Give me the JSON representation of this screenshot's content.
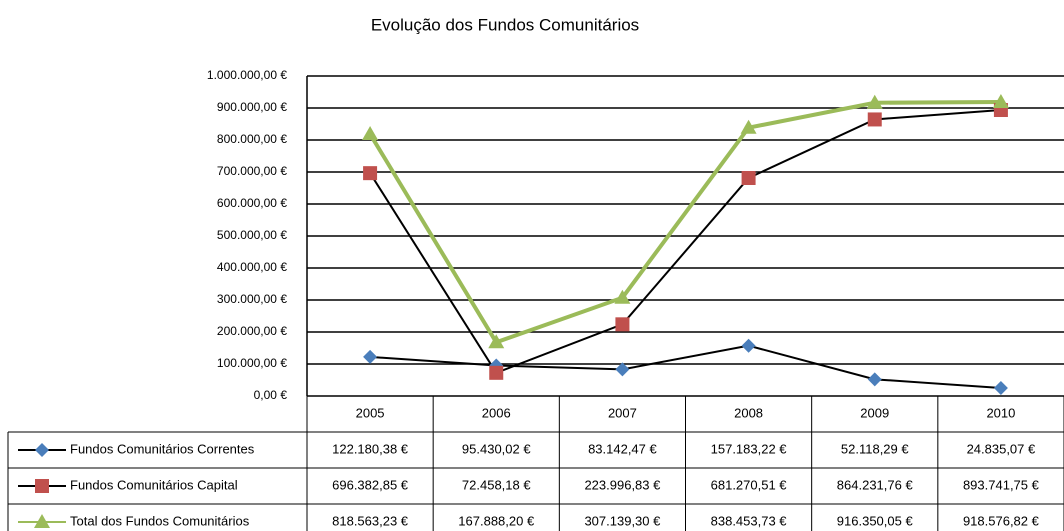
{
  "chart_data": {
    "type": "line",
    "title": "Evolução dos Fundos Comunitários",
    "categories": [
      "2005",
      "2006",
      "2007",
      "2008",
      "2009",
      "2010"
    ],
    "series": [
      {
        "name": "Fundos Comunitários Correntes",
        "color": "#4a7ebb",
        "line_color": "#000000",
        "marker": "diamond",
        "values": [
          122180.38,
          95430.02,
          83142.47,
          157183.22,
          52118.29,
          24835.07
        ],
        "value_labels": [
          "122.180,38 €",
          "95.430,02 €",
          "83.142,47 €",
          "157.183,22 €",
          "52.118,29 €",
          "24.835,07 €"
        ]
      },
      {
        "name": "Fundos Comunitários Capital",
        "color": "#c0504d",
        "line_color": "#000000",
        "marker": "square",
        "values": [
          696382.85,
          72458.18,
          223996.83,
          681270.51,
          864231.76,
          893741.75
        ],
        "value_labels": [
          "696.382,85 €",
          "72.458,18 €",
          "223.996,83 €",
          "681.270,51 €",
          "864.231,76 €",
          "893.741,75 €"
        ]
      },
      {
        "name": "Total dos Fundos Comunitários",
        "color": "#9bbb59",
        "line_color": "#9bbb59",
        "marker": "triangle",
        "values": [
          818563.23,
          167888.2,
          307139.3,
          838453.73,
          916350.05,
          918576.82
        ],
        "value_labels": [
          "818.563,23 €",
          "167.888,20 €",
          "307.139,30 €",
          "838.453,73 €",
          "916.350,05 €",
          "918.576,82 €"
        ]
      }
    ],
    "ylim": [
      0,
      1000000
    ],
    "yticks": [
      {
        "value": 0,
        "label": "0,00 €"
      },
      {
        "value": 100000,
        "label": "100.000,00 €"
      },
      {
        "value": 200000,
        "label": "200.000,00 €"
      },
      {
        "value": 300000,
        "label": "300.000,00 €"
      },
      {
        "value": 400000,
        "label": "400.000,00 €"
      },
      {
        "value": 500000,
        "label": "500.000,00 €"
      },
      {
        "value": 600000,
        "label": "600.000,00 €"
      },
      {
        "value": 700000,
        "label": "700.000,00 €"
      },
      {
        "value": 800000,
        "label": "800.000,00 €"
      },
      {
        "value": 900000,
        "label": "900.000,00 €"
      },
      {
        "value": 1000000,
        "label": "1.000.000,00 €"
      }
    ],
    "grid": true
  }
}
